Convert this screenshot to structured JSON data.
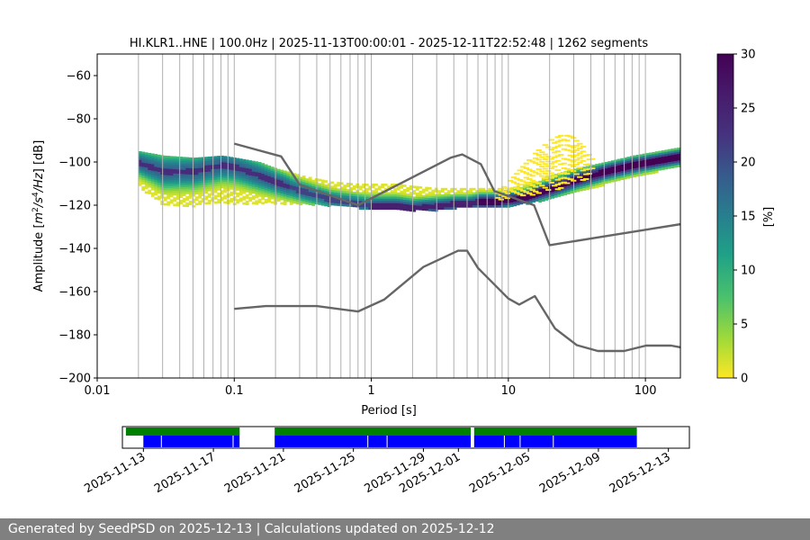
{
  "title": "HI.KLR1..HNE | 100.0Hz | 2025-11-13T00:00:01 - 2025-12-11T22:52:48 | 1262 segments",
  "footer": {
    "text": "Generated by SeedPSD on 2025-12-13 | Calculations updated on 2025-12-12"
  },
  "chart_data": [
    {
      "type": "heatmap",
      "title": "HI.KLR1..HNE | 100.0Hz | 2025-11-13T00:00:01 - 2025-12-11T22:52:48 | 1262 segments",
      "xlabel": "Period [s]",
      "ylabel": "Amplitude [$m^2/s^4/Hz$] [dB]",
      "x_scale": "log",
      "xlim": [
        0.01,
        180
      ],
      "ylim": [
        -200,
        -50
      ],
      "grid": true,
      "x_ticks": [
        "0.01",
        "0.1",
        "1",
        "10",
        "100"
      ],
      "x_tick_values": [
        0.01,
        0.1,
        1,
        10,
        100
      ],
      "y_ticks": [
        "−60",
        "−80",
        "−100",
        "−120",
        "−140",
        "−160",
        "−180",
        "−200"
      ],
      "y_tick_values": [
        -60,
        -80,
        -100,
        -120,
        -140,
        -160,
        -180,
        -200
      ],
      "vertical_grid_periods": [
        0.02,
        0.03,
        0.04,
        0.05,
        0.06,
        0.07,
        0.08,
        0.09,
        0.1,
        0.2,
        0.3,
        0.4,
        0.5,
        0.6,
        0.7,
        0.8,
        0.9,
        1,
        2,
        3,
        4,
        5,
        6,
        7,
        8,
        9,
        10,
        20,
        30,
        40,
        50,
        60,
        70,
        80,
        90,
        100
      ],
      "colorbar": {
        "label": "[%]",
        "range": [
          0,
          30
        ],
        "ticks": [
          "0",
          "5",
          "10",
          "15",
          "20",
          "25",
          "30"
        ],
        "tick_values": [
          0,
          5,
          10,
          15,
          20,
          25,
          30
        ],
        "colormap": "viridis_r"
      },
      "psd_mode": {
        "period": [
          0.02,
          0.03,
          0.05,
          0.08,
          0.1,
          0.15,
          0.2,
          0.3,
          0.5,
          0.8,
          1.0,
          1.5,
          2,
          3,
          4,
          5,
          6,
          8,
          10,
          13,
          16,
          20,
          30,
          50,
          80,
          120,
          180
        ],
        "db": [
          -100,
          -104,
          -104,
          -101,
          -102,
          -106,
          -109,
          -113,
          -117,
          -119,
          -120,
          -120,
          -121,
          -120,
          -119,
          -119,
          -118,
          -118,
          -117,
          -116,
          -114,
          -112,
          -108,
          -104,
          -101,
          -99,
          -97
        ]
      },
      "psd_spread": {
        "period": [
          0.02,
          0.03,
          0.05,
          0.08,
          0.1,
          0.15,
          0.2,
          0.3,
          0.5,
          0.8,
          1.0,
          1.5,
          2,
          3,
          4,
          5,
          6,
          8,
          10,
          13,
          16,
          20,
          30,
          50,
          80,
          120,
          180
        ],
        "db_top": [
          -95,
          -97,
          -98,
          -97,
          -98,
          -100,
          -103,
          -106,
          -109,
          -110,
          -110,
          -110,
          -111,
          -112,
          -112,
          -112,
          -112,
          -112,
          -112,
          -110,
          -108,
          -106,
          -103,
          -100,
          -97,
          -95,
          -93
        ],
        "db_bottom": [
          -112,
          -120,
          -120,
          -119,
          -119,
          -119,
          -119,
          -119,
          -120,
          -121,
          -122,
          -122,
          -122,
          -122,
          -121,
          -121,
          -121,
          -121,
          -120,
          -119,
          -118,
          -117,
          -114,
          -110,
          -107,
          -104,
          -102
        ]
      },
      "microseism_peak": {
        "period": [
          8,
          10,
          13,
          16,
          20,
          24,
          28,
          34,
          40
        ],
        "db_top": [
          -114,
          -108,
          -100,
          -94,
          -89,
          -87,
          -88,
          -93,
          -99
        ],
        "db_bottom": [
          -117,
          -117,
          -116,
          -115,
          -113,
          -112,
          -110,
          -108,
          -106
        ]
      },
      "series": [
        {
          "period": [
            0.1,
            0.22,
            0.3,
            0.8,
            3.8,
            4.6,
            6.3,
            7.9,
            15.4,
            20,
            180
          ],
          "db": [
            -91.5,
            -97.4,
            -110.5,
            -120.0,
            -98.0,
            -96.5,
            -101.0,
            -113.5,
            -120.0,
            -138.5,
            -128.8
          ]
        },
        {
          "period": [
            0.1,
            0.17,
            0.4,
            0.8,
            1.24,
            2.4,
            4.3,
            5.0,
            6.0,
            10.0,
            12.0,
            15.6,
            21.9,
            31.6,
            45.0,
            70.0,
            101.0,
            154.0,
            180.0
          ],
          "db": [
            -168.0,
            -166.7,
            -166.7,
            -169.2,
            -163.7,
            -148.6,
            -141.1,
            -141.1,
            -149.1,
            -163.2,
            -166.0,
            -162.1,
            -177.1,
            -184.8,
            -187.5,
            -187.5,
            -185.0,
            -185.0,
            -185.8
          ]
        }
      ]
    },
    {
      "type": "bar",
      "title": "",
      "xlabel": "",
      "ylabel": "",
      "x_ticks": [
        "2025-11-13",
        "2025-11-17",
        "2025-11-21",
        "2025-11-25",
        "2025-11-29",
        "2025-12-01",
        "2025-12-05",
        "2025-12-09",
        "2025-12-13"
      ],
      "x_tick_days": [
        0,
        4,
        8,
        12,
        16,
        18,
        22,
        26,
        30
      ],
      "xlim_days": [
        -1.2,
        31.2
      ],
      "series": [
        {
          "color": "#008000",
          "segments": [
            [
              -1.0,
              5.5
            ],
            [
              7.5,
              18.7
            ],
            [
              18.9,
              28.2
            ]
          ]
        },
        {
          "color": "#0000ff",
          "segments": [
            [
              0.0,
              5.5
            ],
            [
              7.5,
              18.7
            ],
            [
              18.9,
              28.2
            ]
          ]
        }
      ],
      "gap_days": [
        1.0,
        5.1,
        12.8,
        13.9,
        20.6,
        21.5,
        23.4
      ]
    }
  ]
}
